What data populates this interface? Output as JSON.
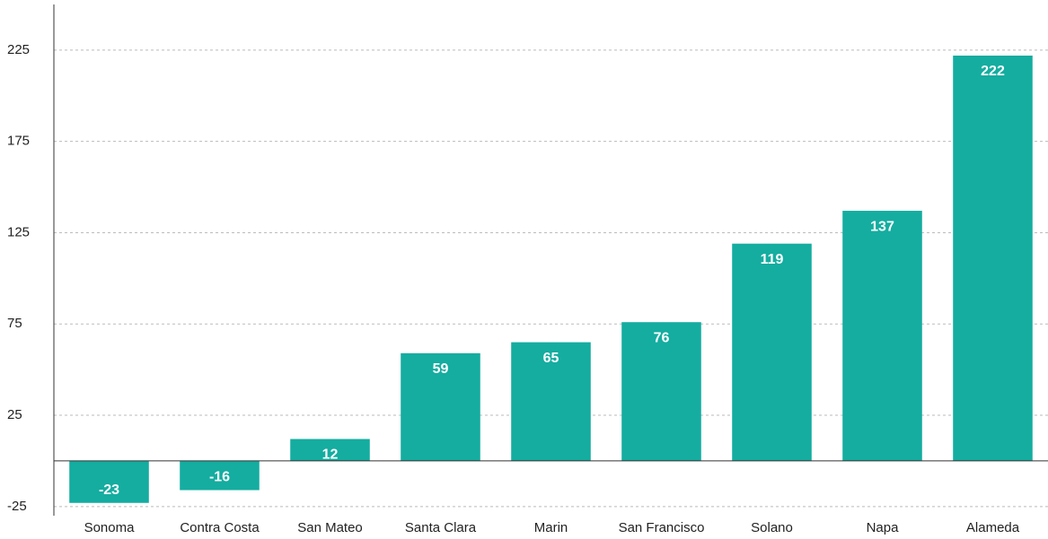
{
  "chart_data": {
    "type": "bar",
    "categories": [
      "Sonoma",
      "Contra Costa",
      "San Mateo",
      "Santa Clara",
      "Marin",
      "San Francisco",
      "Solano",
      "Napa",
      "Alameda"
    ],
    "values": [
      -23,
      -16,
      12,
      59,
      65,
      76,
      119,
      137,
      222
    ],
    "color": "#14ada0",
    "ylim": [
      -30,
      250
    ],
    "yticks": [
      -25,
      25,
      75,
      125,
      175,
      225
    ],
    "grid": true
  }
}
